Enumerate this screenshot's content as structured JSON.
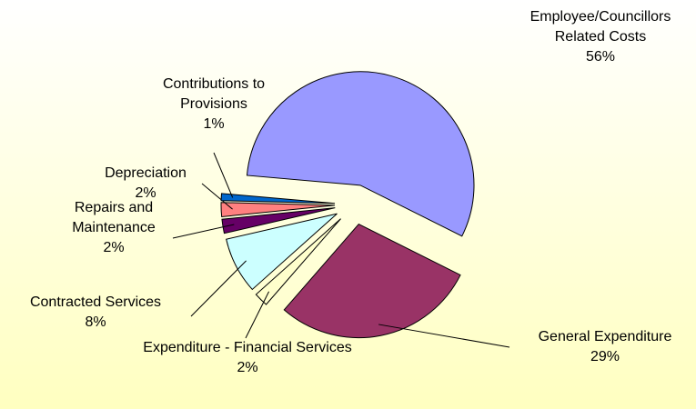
{
  "chart_data": {
    "type": "pie",
    "categories": [
      "Employee/Councillors Related Costs",
      "General Expenditure",
      "Expenditure - Financial Services",
      "Contracted Services",
      "Repairs and Maintenance",
      "Depreciation",
      "Contributions to Provisions"
    ],
    "values": [
      56,
      29,
      2,
      8,
      2,
      2,
      1
    ],
    "value_labels": [
      "56%",
      "29%",
      "2%",
      "8%",
      "2%",
      "2%",
      "1%"
    ],
    "colors": [
      "#9999ff",
      "#993366",
      "#ffffcc",
      "#ccffff",
      "#660066",
      "#ff8080",
      "#0066cc"
    ]
  }
}
